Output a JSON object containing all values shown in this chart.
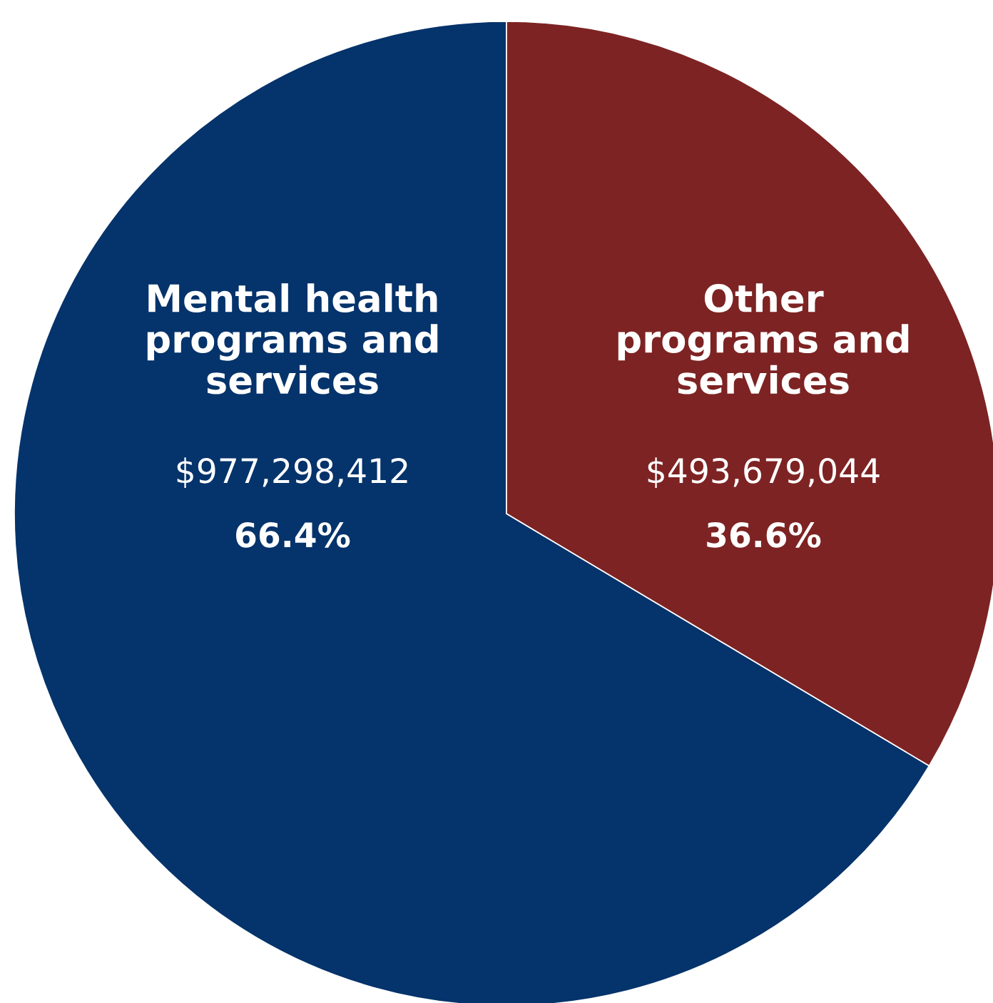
{
  "chart_data": {
    "type": "pie",
    "categories": [
      "Mental health\nprograms and\nservices",
      "Other\nprograms and\nservices"
    ],
    "values": [
      977298412,
      493679044
    ],
    "colors": [
      "#05336b",
      "#7d2323"
    ],
    "value_labels": [
      "$977,298,412",
      "$493,679,044"
    ],
    "annotations": [
      "66.4%",
      "36.6%"
    ]
  }
}
